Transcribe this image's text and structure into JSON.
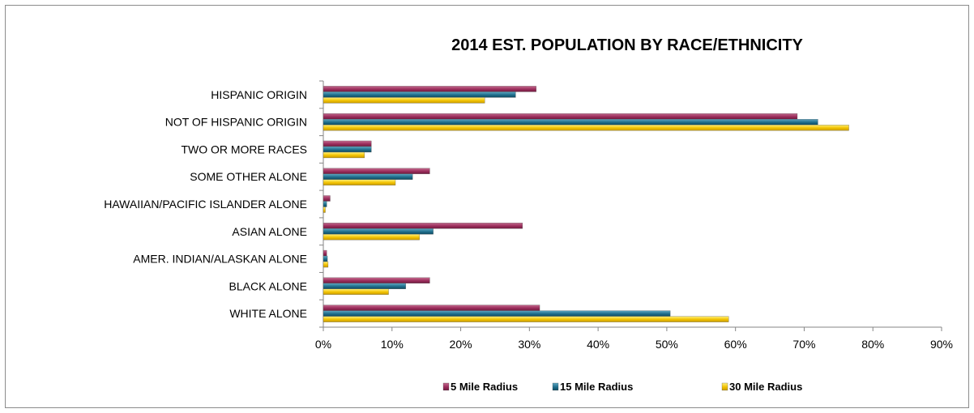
{
  "chart_data": {
    "type": "bar",
    "orientation": "horizontal",
    "title": "2014 EST. POPULATION BY RACE/ETHNICITY",
    "xlabel": "",
    "ylabel": "",
    "categories": [
      "HISPANIC ORIGIN",
      "NOT OF HISPANIC ORIGIN",
      "TWO OR MORE RACES",
      "SOME OTHER ALONE",
      "HAWAIIAN/PACIFIC ISLANDER ALONE",
      "ASIAN ALONE",
      "AMER. INDIAN/ALASKAN ALONE",
      "BLACK ALONE",
      "WHITE ALONE"
    ],
    "series": [
      {
        "name": "5 Mile Radius",
        "color": "#9b2d5c",
        "values": [
          31,
          69,
          7,
          15.5,
          1,
          29,
          0.5,
          15.5,
          31.5
        ]
      },
      {
        "name": "15 Mile Radius",
        "color": "#1f6e8c",
        "values": [
          28,
          72,
          7,
          13,
          0.5,
          16,
          0.6,
          12,
          50.5
        ]
      },
      {
        "name": "30 Mile Radius",
        "color": "#f2c200",
        "values": [
          23.5,
          76.5,
          6,
          10.5,
          0.3,
          14,
          0.7,
          9.5,
          59
        ]
      }
    ],
    "xlim": [
      0,
      90
    ],
    "xticks": [
      "0%",
      "10%",
      "20%",
      "30%",
      "40%",
      "50%",
      "60%",
      "70%",
      "80%",
      "90%"
    ],
    "grid": false,
    "legend_position": "bottom"
  }
}
